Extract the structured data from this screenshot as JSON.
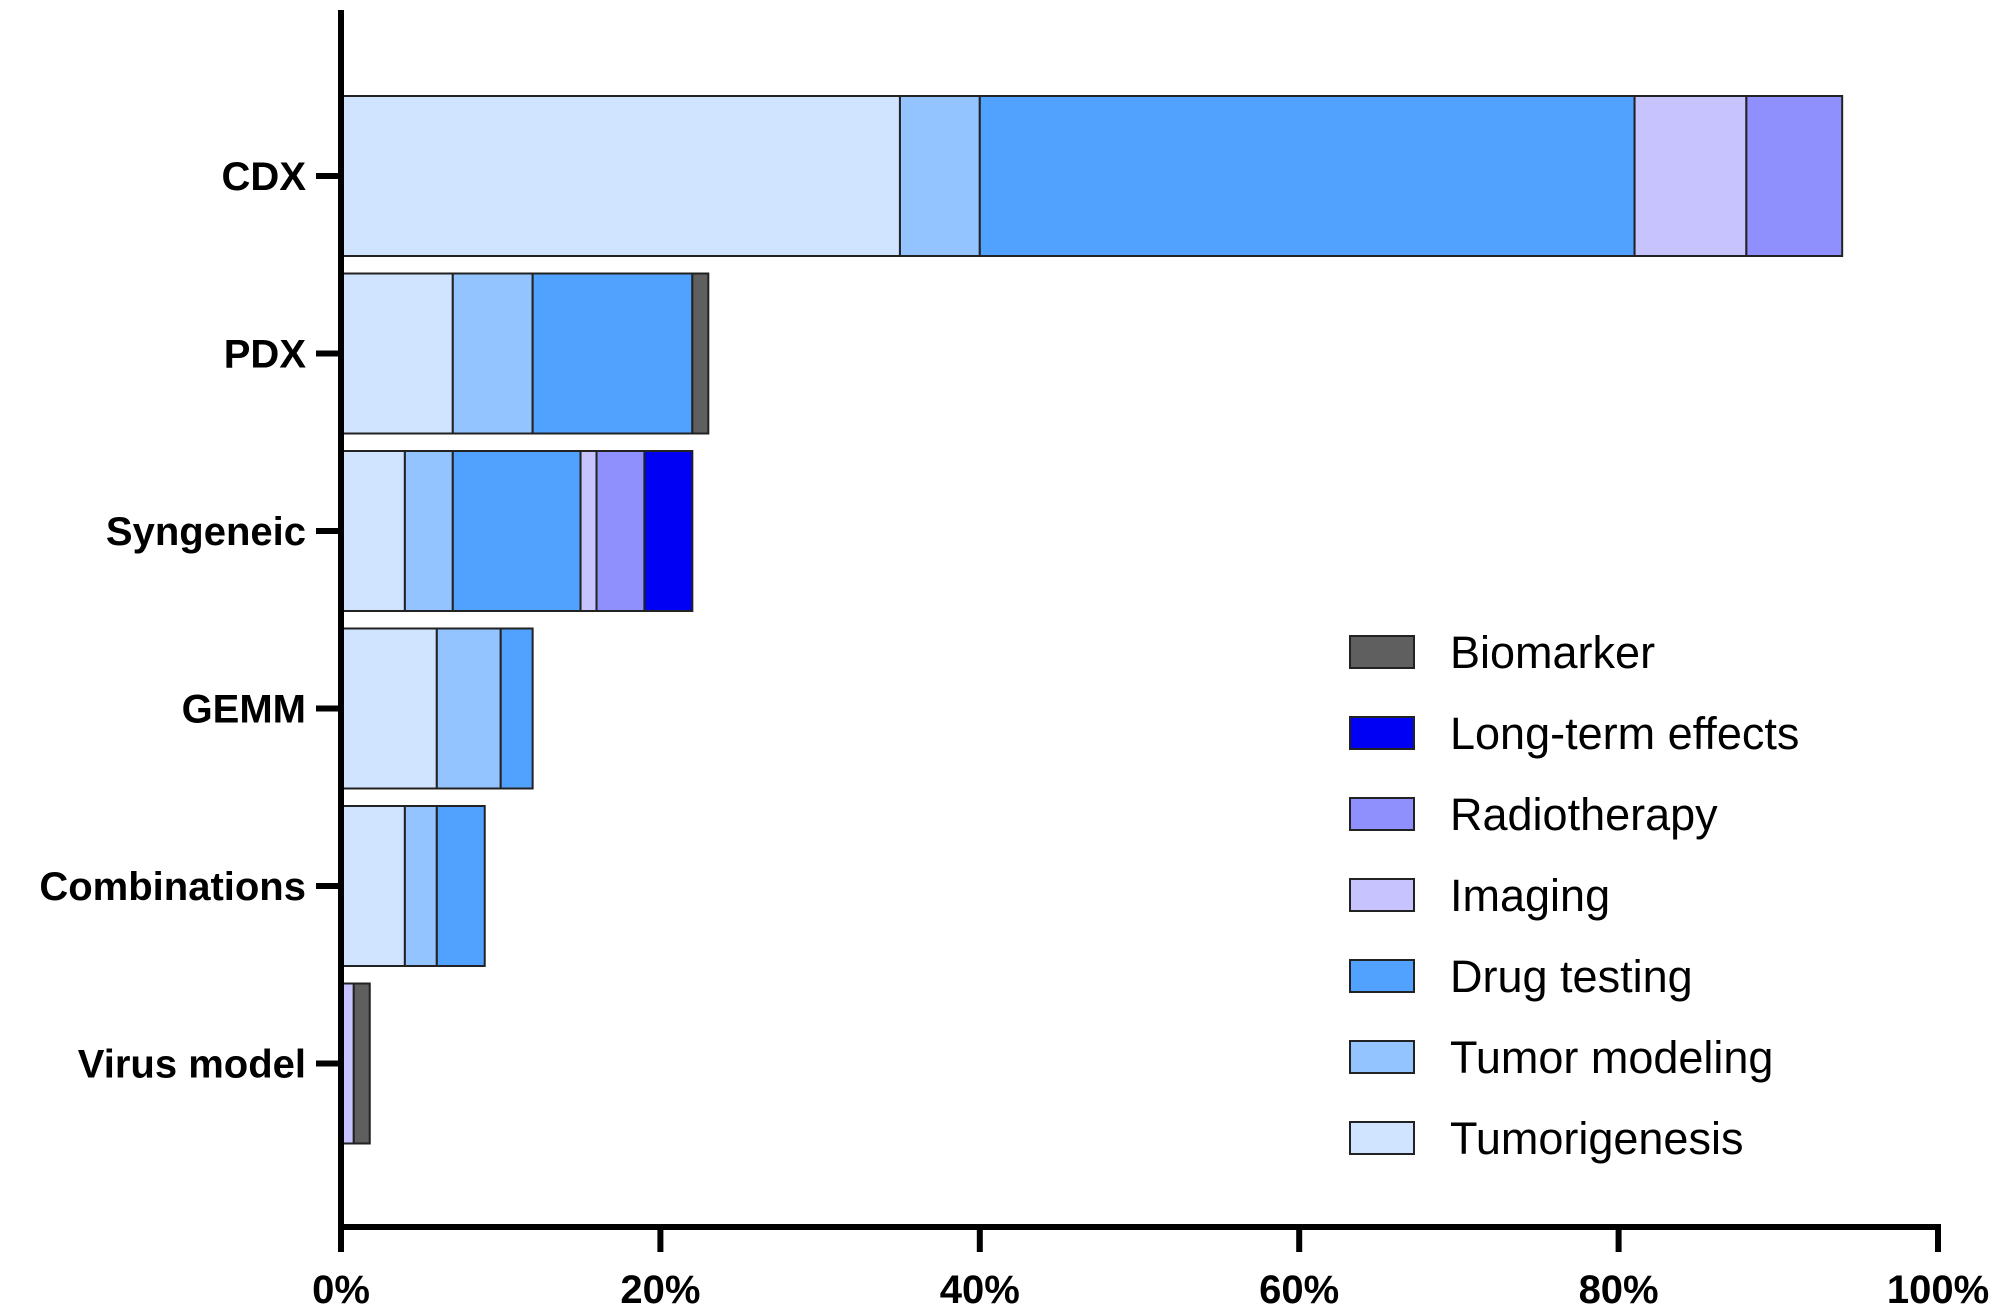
{
  "chart_data": {
    "type": "bar",
    "orientation": "horizontal",
    "stacked": true,
    "categories": [
      "CDX",
      "PDX",
      "Syngeneic",
      "GEMM",
      "Combinations",
      "Virus model"
    ],
    "series": [
      {
        "name": "Tumorigenesis",
        "color": "#d0e4ff",
        "values": [
          35,
          7,
          4,
          6,
          4,
          0
        ]
      },
      {
        "name": "Tumor modeling",
        "color": "#93c4ff",
        "values": [
          5,
          5,
          3,
          4,
          2,
          0
        ]
      },
      {
        "name": "Drug testing",
        "color": "#50a2fe",
        "values": [
          41,
          10,
          8,
          2,
          3,
          0
        ]
      },
      {
        "name": "Imaging",
        "color": "#c7c3ff",
        "values": [
          7,
          0,
          1,
          0,
          0,
          0.8
        ]
      },
      {
        "name": "Radiotherapy",
        "color": "#8f8ffe",
        "values": [
          6,
          0,
          3,
          0,
          0,
          0
        ]
      },
      {
        "name": "Long-term effects",
        "color": "#0000f4",
        "values": [
          0,
          0,
          3,
          0,
          0,
          0
        ]
      },
      {
        "name": "Biomarker",
        "color": "#5f5f5f",
        "values": [
          0,
          1,
          0,
          0,
          0,
          1
        ]
      }
    ],
    "legend_order": [
      "Biomarker",
      "Long-term effects",
      "Radiotherapy",
      "Imaging",
      "Drug testing",
      "Tumor modeling",
      "Tumorigenesis"
    ],
    "xlim": [
      0,
      100
    ],
    "xticks": [
      "0%",
      "20%",
      "40%",
      "60%",
      "80%",
      "100%"
    ],
    "xtick_values": [
      0,
      20,
      40,
      60,
      80,
      100
    ],
    "legend_position": "bottom-right",
    "grid": false,
    "title": "",
    "xlabel": "",
    "ylabel": ""
  }
}
